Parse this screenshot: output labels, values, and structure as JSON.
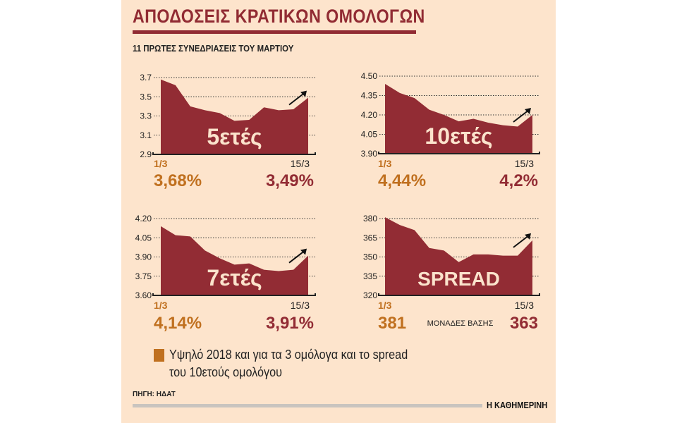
{
  "title": "ΑΠΟΔΟΣΕΙΣ ΚΡΑΤΙΚΩΝ ΟΜΟΛΟΓΩΝ",
  "subtitle": "11 ΠΡΩΤΕΣ ΣΥΝΕΔΡΙΑΣΕΙΣ ΤΟΥ ΜΑΡΤΙΟΥ",
  "legend": {
    "line1": "Υψηλό 2018 και για τα 3 ομόλογα και το spread",
    "line2": "του 10ετούς ομολόγου",
    "color": "#c0701f"
  },
  "source": "ΠΗΓΗ: ΗΔΑΤ",
  "brand": "Η ΚΑΘΗΜΕΡΙΝΗ",
  "colors": {
    "area": "#922c34",
    "accent": "#c0701f",
    "background": "#fde4cc"
  },
  "chart_data": [
    {
      "type": "area",
      "label": "5ετές",
      "yticks": [
        "3.7",
        "3.5",
        "3.3",
        "3.1",
        "2.9"
      ],
      "ylim": [
        2.9,
        3.7
      ],
      "x_start": "1/3",
      "x_end": "15/3",
      "values": [
        3.68,
        3.62,
        3.4,
        3.36,
        3.33,
        3.25,
        3.26,
        3.39,
        3.36,
        3.37,
        3.49
      ],
      "start_value": "3,68%",
      "end_value": "3,49%",
      "unit_note": "",
      "trend": "up-arrow-icon"
    },
    {
      "type": "area",
      "label": "10ετές",
      "yticks": [
        "4.50",
        "4.35",
        "4.20",
        "4.05",
        "3.90"
      ],
      "ylim": [
        3.9,
        4.5
      ],
      "x_start": "1/3",
      "x_end": "15/3",
      "values": [
        4.44,
        4.37,
        4.33,
        4.24,
        4.2,
        4.15,
        4.17,
        4.14,
        4.12,
        4.11,
        4.2
      ],
      "start_value": "4,44%",
      "end_value": "4,2%",
      "unit_note": "",
      "trend": "up-arrow-icon"
    },
    {
      "type": "area",
      "label": "7ετές",
      "yticks": [
        "4.20",
        "4.05",
        "3.90",
        "3.75",
        "3.60"
      ],
      "ylim": [
        3.6,
        4.2
      ],
      "x_start": "1/3",
      "x_end": "15/3",
      "values": [
        4.14,
        4.07,
        4.06,
        3.95,
        3.89,
        3.84,
        3.85,
        3.8,
        3.79,
        3.8,
        3.91
      ],
      "start_value": "4,14%",
      "end_value": "3,91%",
      "unit_note": "",
      "trend": "up-arrow-icon"
    },
    {
      "type": "area",
      "label": "SPREAD",
      "yticks": [
        "380",
        "365",
        "350",
        "335",
        "320"
      ],
      "ylim": [
        320,
        380
      ],
      "x_start": "1/3",
      "x_end": "15/3",
      "values": [
        381,
        375,
        371,
        357,
        355,
        346,
        352,
        352,
        351,
        351,
        363
      ],
      "start_value": "381",
      "end_value": "363",
      "unit_note": "ΜΟΝΑΔΕΣ ΒΑΣΗΣ",
      "trend": "up-arrow-icon"
    }
  ]
}
